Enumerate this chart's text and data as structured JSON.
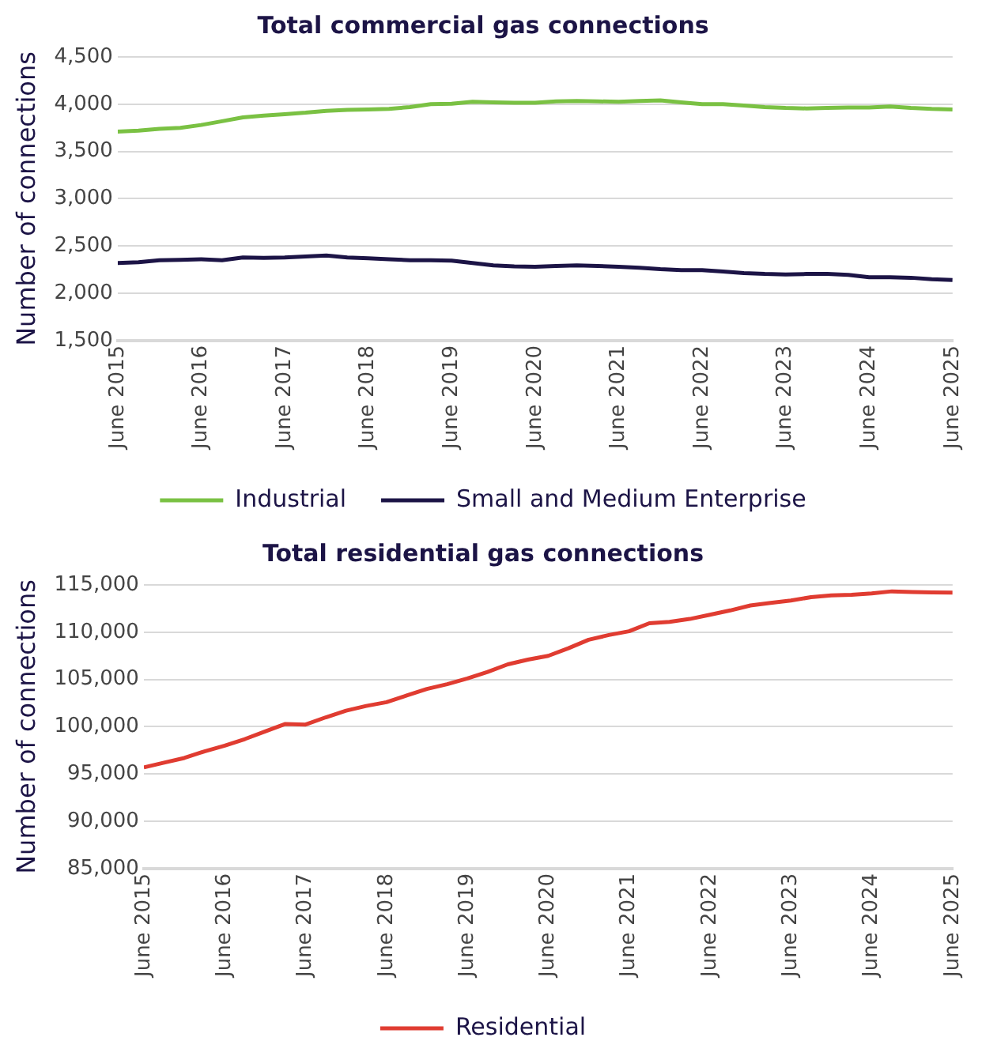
{
  "chart_data": [
    {
      "type": "line",
      "title": "Total commercial gas connections",
      "ylabel": "Number of connections",
      "x": [
        "2015-06",
        "2015-09",
        "2015-12",
        "2016-03",
        "2016-06",
        "2016-09",
        "2016-12",
        "2017-03",
        "2017-06",
        "2017-09",
        "2017-12",
        "2018-03",
        "2018-06",
        "2018-09",
        "2018-12",
        "2019-03",
        "2019-06",
        "2019-09",
        "2019-12",
        "2020-03",
        "2020-06",
        "2020-09",
        "2020-12",
        "2021-03",
        "2021-06",
        "2021-09",
        "2021-12",
        "2022-03",
        "2022-06",
        "2022-09",
        "2022-12",
        "2023-03",
        "2023-06",
        "2023-09",
        "2023-12",
        "2024-03",
        "2024-06",
        "2024-09",
        "2024-12",
        "2025-03",
        "2025-06"
      ],
      "series": [
        {
          "name": "Industrial",
          "color": "#7ac143",
          "values": [
            3710,
            3720,
            3740,
            3750,
            3780,
            3820,
            3860,
            3880,
            3895,
            3910,
            3930,
            3940,
            3945,
            3950,
            3970,
            4000,
            4005,
            4025,
            4020,
            4015,
            4015,
            4030,
            4035,
            4030,
            4025,
            4035,
            4040,
            4020,
            4000,
            4000,
            3985,
            3970,
            3960,
            3955,
            3960,
            3965,
            3965,
            3975,
            3960,
            3950,
            3945
          ]
        },
        {
          "name": "Small and Medium Enterprise",
          "color": "#1c1446",
          "values": [
            2320,
            2330,
            2350,
            2355,
            2360,
            2350,
            2380,
            2375,
            2380,
            2390,
            2400,
            2380,
            2370,
            2360,
            2350,
            2350,
            2345,
            2320,
            2295,
            2285,
            2280,
            2290,
            2295,
            2290,
            2280,
            2270,
            2255,
            2245,
            2245,
            2230,
            2215,
            2205,
            2200,
            2205,
            2205,
            2195,
            2170,
            2170,
            2165,
            2150,
            2140
          ]
        }
      ],
      "xlim": [
        "2015-06",
        "2025-06"
      ],
      "xticks": [
        {
          "value": "2015-06",
          "label": "June 2015"
        },
        {
          "value": "2016-06",
          "label": "June 2016"
        },
        {
          "value": "2017-06",
          "label": "June 2017"
        },
        {
          "value": "2018-06",
          "label": "June 2018"
        },
        {
          "value": "2019-06",
          "label": "June 2019"
        },
        {
          "value": "2020-06",
          "label": "June 2020"
        },
        {
          "value": "2021-06",
          "label": "June 2021"
        },
        {
          "value": "2022-06",
          "label": "June 2022"
        },
        {
          "value": "2023-06",
          "label": "June 2023"
        },
        {
          "value": "2024-06",
          "label": "June 2024"
        },
        {
          "value": "2025-06",
          "label": "June 2025"
        }
      ],
      "ylim": [
        1500,
        4500
      ],
      "yticks": [
        {
          "value": 1500,
          "label": "1,500"
        },
        {
          "value": 2000,
          "label": "2,000"
        },
        {
          "value": 2500,
          "label": "2,500"
        },
        {
          "value": 3000,
          "label": "3,000"
        },
        {
          "value": 3500,
          "label": "3,500"
        },
        {
          "value": 4000,
          "label": "4,000"
        },
        {
          "value": 4500,
          "label": "4,500"
        }
      ],
      "grid": "y",
      "legend": "bottom",
      "marker": "none",
      "line_style": "solid"
    },
    {
      "type": "line",
      "title": "Total residential gas connections",
      "ylabel": "Number of connections",
      "x": [
        "2015-06",
        "2015-09",
        "2015-12",
        "2016-03",
        "2016-06",
        "2016-09",
        "2016-12",
        "2017-03",
        "2017-06",
        "2017-09",
        "2017-12",
        "2018-03",
        "2018-06",
        "2018-09",
        "2018-12",
        "2019-03",
        "2019-06",
        "2019-09",
        "2019-12",
        "2020-03",
        "2020-06",
        "2020-09",
        "2020-12",
        "2021-03",
        "2021-06",
        "2021-09",
        "2021-12",
        "2022-03",
        "2022-06",
        "2022-09",
        "2022-12",
        "2023-03",
        "2023-06",
        "2023-09",
        "2023-12",
        "2024-03",
        "2024-06",
        "2024-09",
        "2024-12",
        "2025-03",
        "2025-06"
      ],
      "series": [
        {
          "name": "Residential",
          "color": "#e03c31",
          "values": [
            95700,
            96200,
            96700,
            97400,
            98000,
            98700,
            99500,
            100300,
            100230,
            101000,
            101700,
            102200,
            102600,
            103300,
            104000,
            104500,
            105100,
            105800,
            106600,
            107100,
            107500,
            108300,
            109200,
            109700,
            110100,
            110950,
            111100,
            111400,
            111850,
            112300,
            112830,
            113100,
            113350,
            113700,
            113900,
            113950,
            114100,
            114320,
            114250,
            114200,
            114180
          ]
        }
      ],
      "xlim": [
        "2015-06",
        "2025-06"
      ],
      "xticks": [
        {
          "value": "2015-06",
          "label": "June 2015"
        },
        {
          "value": "2016-06",
          "label": "June 2016"
        },
        {
          "value": "2017-06",
          "label": "June 2017"
        },
        {
          "value": "2018-06",
          "label": "June 2018"
        },
        {
          "value": "2019-06",
          "label": "June 2019"
        },
        {
          "value": "2020-06",
          "label": "June 2020"
        },
        {
          "value": "2021-06",
          "label": "June 2021"
        },
        {
          "value": "2022-06",
          "label": "June 2022"
        },
        {
          "value": "2023-06",
          "label": "June 2023"
        },
        {
          "value": "2024-06",
          "label": "June 2024"
        },
        {
          "value": "2025-06",
          "label": "June 2025"
        }
      ],
      "ylim": [
        85000,
        115000
      ],
      "yticks": [
        {
          "value": 85000,
          "label": "85,000"
        },
        {
          "value": 90000,
          "label": "90,000"
        },
        {
          "value": 95000,
          "label": "95,000"
        },
        {
          "value": 100000,
          "label": "100,000"
        },
        {
          "value": 105000,
          "label": "105,000"
        },
        {
          "value": 110000,
          "label": "110,000"
        },
        {
          "value": 115000,
          "label": "115,000"
        }
      ],
      "grid": "y",
      "legend": "bottom",
      "marker": "none",
      "line_style": "solid"
    }
  ]
}
